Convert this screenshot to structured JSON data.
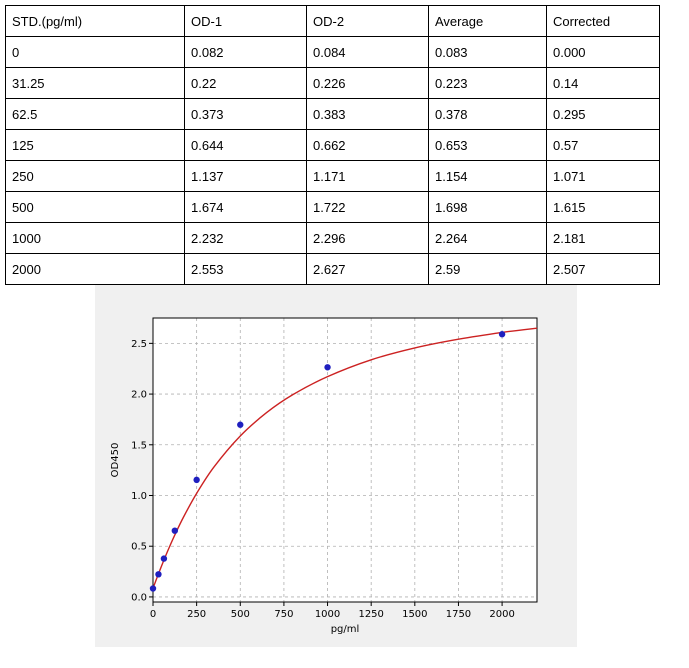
{
  "table": {
    "headers": [
      "STD.(pg/ml)",
      "OD-1",
      "OD-2",
      "Average",
      "Corrected"
    ],
    "rows": [
      [
        "0",
        "0.082",
        "0.084",
        "0.083",
        "0.000"
      ],
      [
        "31.25",
        "0.22",
        "0.226",
        "0.223",
        "0.14"
      ],
      [
        "62.5",
        "0.373",
        "0.383",
        "0.378",
        "0.295"
      ],
      [
        "125",
        "0.644",
        "0.662",
        "0.653",
        "0.57"
      ],
      [
        "250",
        "1.137",
        "1.171",
        "1.154",
        "1.071"
      ],
      [
        "500",
        "1.674",
        "1.722",
        "1.698",
        "1.615"
      ],
      [
        "1000",
        "2.232",
        "2.296",
        "2.264",
        "2.181"
      ],
      [
        "2000",
        "2.553",
        "2.627",
        "2.59",
        "2.507"
      ]
    ]
  },
  "chart_data": {
    "type": "scatter",
    "title": "",
    "xlabel": "pg/ml",
    "ylabel": "OD450",
    "xlim": [
      0,
      2200
    ],
    "ylim": [
      -0.05,
      2.75
    ],
    "xticks": [
      0,
      250,
      500,
      750,
      1000,
      1250,
      1500,
      1750,
      2000
    ],
    "xtick_labels": [
      "0",
      "250",
      "500",
      "750",
      "1000",
      "1250",
      "1500",
      "1750",
      "2000"
    ],
    "yticks": [
      0.0,
      0.5,
      1.0,
      1.5,
      2.0,
      2.5
    ],
    "ytick_labels": [
      "0.0",
      "0.5",
      "1.0",
      "1.5",
      "2.0",
      "2.5"
    ],
    "grid": true,
    "series": [
      {
        "kind": "points",
        "color": "#1f1fbf",
        "x": [
          0,
          31.25,
          62.5,
          125,
          250,
          500,
          1000,
          2000
        ],
        "y": [
          0.083,
          0.223,
          0.378,
          0.653,
          1.154,
          1.698,
          2.264,
          2.59
        ]
      },
      {
        "kind": "fit-curve",
        "color": "#cc2222",
        "x": [
          0,
          10,
          20,
          40,
          62.5,
          90,
          125,
          175,
          250,
          350,
          500,
          650,
          800,
          1000,
          1250,
          1500,
          1750,
          2000,
          2200
        ],
        "y": [
          0.084,
          0.131,
          0.177,
          0.266,
          0.363,
          0.476,
          0.611,
          0.788,
          1.021,
          1.283,
          1.587,
          1.816,
          1.993,
          2.172,
          2.338,
          2.455,
          2.541,
          2.608,
          2.65
        ]
      }
    ]
  }
}
